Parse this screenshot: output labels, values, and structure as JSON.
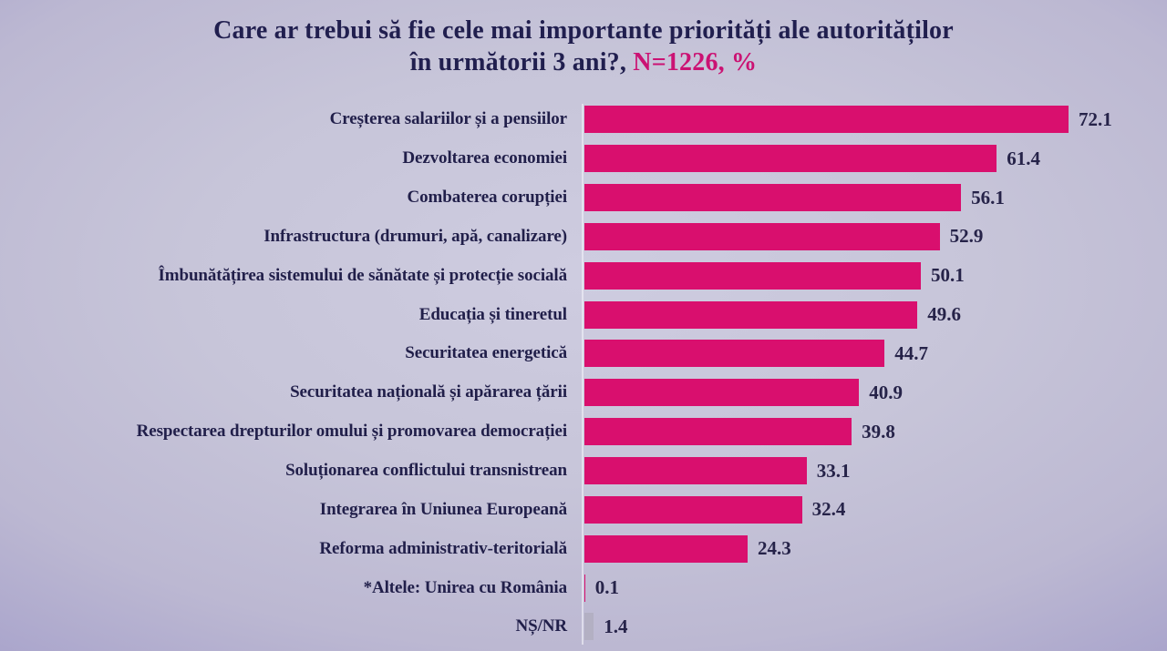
{
  "title": {
    "line1": "Care ar trebui să fie cele mai importante priorități ale autorităților",
    "line2_prefix": "în următorii 3 ani?, ",
    "line2_highlight": "N=1226, %"
  },
  "colors": {
    "bar": "#d90f6e",
    "bar_muted": "#b3b0c3",
    "title_text": "#211f4f",
    "title_highlight": "#cb1273",
    "label_text": "#211f4a",
    "background_center": "#cecce0",
    "background_edge": "#9d97c4"
  },
  "chart_data": {
    "type": "bar",
    "orientation": "horizontal",
    "title": "Care ar trebui să fie cele mai importante priorități ale autorităților în următorii 3 ani?, N=1226, %",
    "sample_note": "N=1226",
    "unit": "%",
    "xlabel": "",
    "ylabel": "",
    "xlim": [
      0,
      80
    ],
    "grid": false,
    "legend": false,
    "categories": [
      "Creșterea salariilor și a pensiilor",
      "Dezvoltarea economiei",
      "Combaterea corupției",
      "Infrastructura (drumuri, apă, canalizare)",
      "Îmbunătățirea sistemului de sănătate și protecție socială",
      "Educația și tineretul",
      "Securitatea energetică",
      "Securitatea națională și apărarea țării",
      "Respectarea drepturilor omului și promovarea democrației",
      "Soluționarea conflictului transnistrean",
      "Integrarea în Uniunea Europeană",
      "Reforma administrativ-teritorială",
      "*Altele: Unirea cu România",
      "NȘ/NR"
    ],
    "values": [
      72.1,
      61.4,
      56.1,
      52.9,
      50.1,
      49.6,
      44.7,
      40.9,
      39.8,
      33.1,
      32.4,
      24.3,
      0.1,
      1.4
    ],
    "rows": [
      {
        "label": "Creșterea salariilor și a pensiilor",
        "value": 72.1
      },
      {
        "label": "Dezvoltarea economiei",
        "value": 61.4
      },
      {
        "label": "Combaterea corupției",
        "value": 56.1
      },
      {
        "label": "Infrastructura (drumuri, apă, canalizare)",
        "value": 52.9
      },
      {
        "label": "Îmbunătățirea sistemului de sănătate și protecție socială",
        "value": 50.1
      },
      {
        "label": "Educația și tineretul",
        "value": 49.6
      },
      {
        "label": "Securitatea energetică",
        "value": 44.7
      },
      {
        "label": "Securitatea națională și apărarea țării",
        "value": 40.9
      },
      {
        "label": "Respectarea drepturilor omului și promovarea democrației",
        "value": 39.8
      },
      {
        "label": "Soluționarea conflictului transnistrean",
        "value": 33.1
      },
      {
        "label": "Integrarea în Uniunea Europeană",
        "value": 32.4
      },
      {
        "label": "Reforma administrativ-teritorială",
        "value": 24.3
      },
      {
        "label": "*Altele: Unirea cu România",
        "value": 0.1
      },
      {
        "label": "NȘ/NR",
        "value": 1.4,
        "color": "#b3b0c3"
      }
    ]
  }
}
